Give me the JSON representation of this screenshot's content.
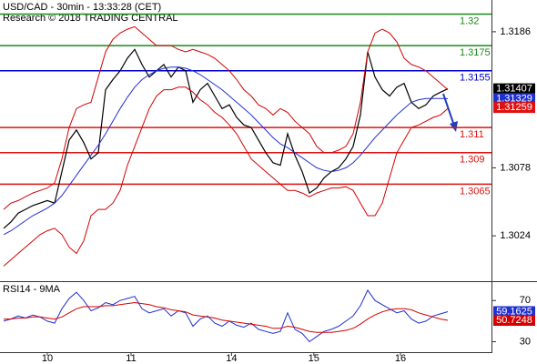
{
  "chart_data": [
    {
      "type": "line",
      "title": "USD/CAD - 30min - 13:33:28 (CET)",
      "subtitle": "Research © 2018 TRADING CENTRAL",
      "x": [
        0,
        1,
        2,
        3,
        4,
        5,
        6,
        7,
        8,
        9,
        10,
        11,
        12,
        13,
        14,
        15,
        16,
        17,
        18,
        19,
        20,
        21,
        22,
        23,
        24,
        25,
        26,
        27,
        28,
        29,
        30,
        31,
        32,
        33,
        34,
        35,
        36,
        37,
        38,
        39,
        40,
        41,
        42,
        43,
        44,
        45,
        46,
        47,
        48,
        49,
        50,
        51,
        52,
        53,
        54,
        55,
        56,
        57,
        58,
        59,
        60,
        61
      ],
      "xlim": [
        -0.5,
        67
      ],
      "ylim": [
        1.2988,
        1.32112
      ],
      "yticks": [
        1.3186,
        1.3078,
        1.3024
      ],
      "series": [
        {
          "color": "#000000",
          "width": 1.2,
          "badge": true,
          "values": [
            1.303,
            1.3035,
            1.3042,
            1.3045,
            1.3048,
            1.305,
            1.3052,
            1.305,
            1.3075,
            1.31,
            1.3108,
            1.3098,
            1.3085,
            1.309,
            1.314,
            1.3148,
            1.3155,
            1.3165,
            1.3172,
            1.316,
            1.315,
            1.3155,
            1.316,
            1.315,
            1.3158,
            1.3155,
            1.313,
            1.314,
            1.3145,
            1.3135,
            1.3125,
            1.3128,
            1.3118,
            1.3112,
            1.311,
            1.31,
            1.309,
            1.3082,
            1.308,
            1.3105,
            1.3088,
            1.3075,
            1.3058,
            1.3062,
            1.307,
            1.3075,
            1.3078,
            1.3085,
            1.3095,
            1.312,
            1.317,
            1.315,
            1.314,
            1.3135,
            1.3142,
            1.3145,
            1.313,
            1.3125,
            1.3128,
            1.3135,
            1.3138,
            1.31407
          ]
        },
        {
          "color": "#1f2fd0",
          "width": 1,
          "badge": true,
          "values": [
            1.3025,
            1.3028,
            1.3032,
            1.3036,
            1.304,
            1.3043,
            1.3046,
            1.305,
            1.3056,
            1.3064,
            1.3072,
            1.308,
            1.3088,
            1.3096,
            1.3105,
            1.3115,
            1.3125,
            1.3134,
            1.3142,
            1.3148,
            1.3152,
            1.3155,
            1.3157,
            1.3158,
            1.3158,
            1.3157,
            1.3155,
            1.3152,
            1.3148,
            1.3144,
            1.314,
            1.3135,
            1.313,
            1.3125,
            1.312,
            1.3114,
            1.3108,
            1.3102,
            1.3097,
            1.3094,
            1.309,
            1.3086,
            1.3082,
            1.3078,
            1.3076,
            1.3075,
            1.3076,
            1.3078,
            1.3082,
            1.3088,
            1.3095,
            1.3102,
            1.3108,
            1.3114,
            1.312,
            1.3125,
            1.313,
            1.3132,
            1.3133,
            1.3133,
            1.3133,
            1.31329
          ]
        },
        {
          "color": "#d40000",
          "width": 1,
          "badge": false,
          "values": [
            1.3045,
            1.305,
            1.3052,
            1.3055,
            1.3058,
            1.306,
            1.3062,
            1.3066,
            1.3085,
            1.311,
            1.3125,
            1.3128,
            1.313,
            1.315,
            1.317,
            1.318,
            1.3185,
            1.3188,
            1.319,
            1.3185,
            1.318,
            1.3175,
            1.3175,
            1.3175,
            1.3172,
            1.317,
            1.3172,
            1.317,
            1.3168,
            1.3165,
            1.316,
            1.3155,
            1.3148,
            1.314,
            1.3135,
            1.3128,
            1.3125,
            1.312,
            1.3125,
            1.3122,
            1.3115,
            1.311,
            1.3105,
            1.3095,
            1.309,
            1.309,
            1.3092,
            1.3095,
            1.3105,
            1.313,
            1.317,
            1.3185,
            1.3188,
            1.3185,
            1.3178,
            1.3165,
            1.316,
            1.3158,
            1.3155,
            1.315,
            1.3145,
            1.314
          ]
        },
        {
          "color": "#d40000",
          "width": 1,
          "badge": false,
          "values": [
            1.3,
            1.3005,
            1.301,
            1.3015,
            1.302,
            1.3025,
            1.3028,
            1.303,
            1.3025,
            1.3015,
            1.301,
            1.302,
            1.304,
            1.3045,
            1.3045,
            1.305,
            1.306,
            1.308,
            1.3095,
            1.311,
            1.3125,
            1.3135,
            1.314,
            1.314,
            1.3142,
            1.3142,
            1.3138,
            1.3132,
            1.3128,
            1.3122,
            1.3118,
            1.3112,
            1.3105,
            1.3095,
            1.3085,
            1.308,
            1.3075,
            1.307,
            1.3065,
            1.306,
            1.306,
            1.3058,
            1.3055,
            1.3058,
            1.306,
            1.3062,
            1.3062,
            1.3063,
            1.306,
            1.305,
            1.304,
            1.304,
            1.305,
            1.307,
            1.309,
            1.31,
            1.311,
            1.3112,
            1.3115,
            1.3118,
            1.312,
            1.3125
          ]
        }
      ],
      "markers": [
        {
          "value": 1.31259,
          "color": "#e01010"
        }
      ],
      "levels": [
        {
          "value": 1.32,
          "color": "#1a8a1a"
        },
        {
          "value": 1.3175,
          "color": "#1a8a1a"
        },
        {
          "value": 1.3155,
          "color": "#0000d0"
        },
        {
          "value": 1.311,
          "color": "#e01010"
        },
        {
          "value": 1.309,
          "color": "#e01010"
        },
        {
          "value": 1.3065,
          "color": "#e01010"
        }
      ]
    },
    {
      "type": "line",
      "title": "RSI14 - 9MA",
      "x": [
        0,
        1,
        2,
        3,
        4,
        5,
        6,
        7,
        8,
        9,
        10,
        11,
        12,
        13,
        14,
        15,
        16,
        17,
        18,
        19,
        20,
        21,
        22,
        23,
        24,
        25,
        26,
        27,
        28,
        29,
        30,
        31,
        32,
        33,
        34,
        35,
        36,
        37,
        38,
        39,
        40,
        41,
        42,
        43,
        44,
        45,
        46,
        47,
        48,
        49,
        50,
        51,
        52,
        53,
        54,
        55,
        56,
        57,
        58,
        59,
        60,
        61
      ],
      "xlim": [
        -0.5,
        67
      ],
      "ylim": [
        19.8,
        87.9
      ],
      "yticks": [
        70,
        30
      ],
      "xticks": [
        {
          "value": 6,
          "label": "10"
        },
        {
          "value": 17.5,
          "label": "11"
        },
        {
          "value": 31.3,
          "label": "14"
        },
        {
          "value": 42.6,
          "label": "15"
        },
        {
          "value": 54.5,
          "label": "16"
        }
      ],
      "series": [
        {
          "color": "#1f2fd0",
          "width": 1,
          "badge": true,
          "values": [
            50,
            52,
            55,
            53,
            56,
            54,
            50,
            48,
            62,
            72,
            78,
            70,
            60,
            63,
            68,
            66,
            70,
            72,
            74,
            62,
            58,
            60,
            62,
            55,
            60,
            58,
            45,
            52,
            55,
            48,
            45,
            50,
            46,
            44,
            48,
            42,
            40,
            38,
            40,
            58,
            42,
            38,
            30,
            35,
            40,
            42,
            45,
            50,
            55,
            65,
            80,
            70,
            66,
            62,
            58,
            60,
            52,
            48,
            50,
            55,
            57,
            59.1625
          ]
        },
        {
          "color": "#d40000",
          "width": 1,
          "badge": true,
          "values": [
            52,
            52,
            53,
            53,
            54,
            54,
            53,
            52,
            54,
            58,
            62,
            64,
            64,
            64,
            65,
            65,
            66,
            67,
            68,
            67,
            66,
            64,
            63,
            61,
            60,
            59,
            56,
            55,
            54,
            53,
            51,
            50,
            49,
            48,
            47,
            46,
            45,
            43,
            43,
            45,
            44,
            42,
            40,
            39,
            39,
            39,
            40,
            41,
            43,
            47,
            52,
            56,
            59,
            61,
            62,
            62,
            61,
            58,
            56,
            54,
            52,
            50.7248
          ]
        }
      ]
    }
  ]
}
